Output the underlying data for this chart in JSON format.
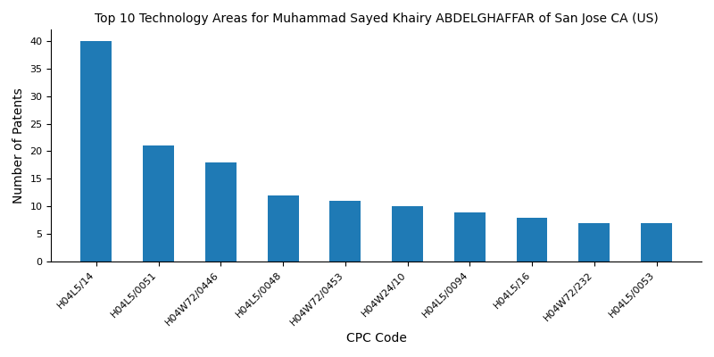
{
  "title": "Top 10 Technology Areas for Muhammad Sayed Khairy ABDELGHAFFAR of San Jose CA (US)",
  "xlabel": "CPC Code",
  "ylabel": "Number of Patents",
  "categories": [
    "H04L5/14",
    "H04L5/0051",
    "H04W72/0446",
    "H04L5/0048",
    "H04W72/0453",
    "H04W24/10",
    "H04L5/0094",
    "H04L5/16",
    "H04W72/232",
    "H04L5/0053"
  ],
  "values": [
    40,
    21,
    18,
    12,
    11,
    10,
    9,
    8,
    7,
    7
  ],
  "bar_color": "#1f7ab5",
  "ylim": [
    0,
    42
  ],
  "yticks": [
    0,
    5,
    10,
    15,
    20,
    25,
    30,
    35,
    40
  ],
  "figsize": [
    8.0,
    4.0
  ],
  "dpi": 100,
  "title_fontsize": 10,
  "axis_label_fontsize": 10,
  "tick_fontsize": 8,
  "background_color": "#ffffff",
  "bar_width": 0.5
}
